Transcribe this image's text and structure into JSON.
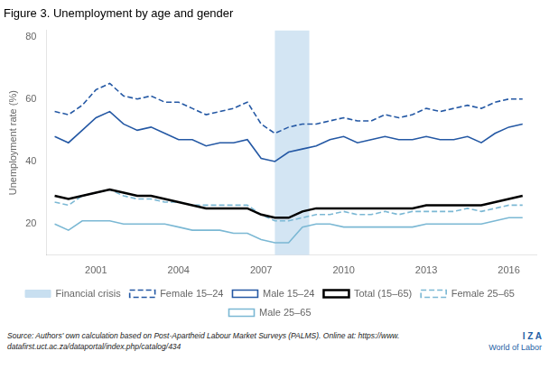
{
  "chart_data": {
    "type": "line",
    "title": "Figure 3. Unemployment by age and gender",
    "y_label": "Unemployment rate (%)",
    "x": [
      1999.5,
      2000.0,
      2000.5,
      2001.0,
      2001.5,
      2002.0,
      2002.5,
      2003.0,
      2003.5,
      2004.0,
      2004.5,
      2005.0,
      2005.5,
      2006.0,
      2006.5,
      2007.0,
      2007.5,
      2008.0,
      2008.5,
      2009.0,
      2009.5,
      2010.0,
      2010.5,
      2011.0,
      2011.5,
      2012.0,
      2012.5,
      2013.0,
      2013.5,
      2014.0,
      2014.5,
      2015.0,
      2015.5,
      2016.0,
      2016.5
    ],
    "series": [
      {
        "name": "Female 15–24",
        "color": "#2458A4",
        "line_style": "dashed",
        "values": [
          56,
          55,
          58,
          63,
          65,
          61,
          60,
          61,
          59,
          59,
          57,
          55,
          56,
          57,
          59,
          52,
          49,
          51,
          52,
          52,
          53,
          54,
          53,
          53,
          55,
          54,
          55,
          57,
          56,
          57,
          58,
          57,
          59,
          60,
          60
        ]
      },
      {
        "name": "Male 15–24",
        "color": "#2458A4",
        "line_style": "solid",
        "values": [
          48,
          46,
          50,
          54,
          56,
          52,
          50,
          51,
          49,
          47,
          47,
          45,
          46,
          46,
          47,
          41,
          40,
          43,
          44,
          45,
          47,
          48,
          46,
          47,
          48,
          47,
          47,
          48,
          47,
          47,
          48,
          46,
          49,
          51,
          52
        ]
      },
      {
        "name": "Total (15–65)",
        "color": "#000000",
        "line_style": "solid",
        "values": [
          29,
          28,
          29,
          30,
          31,
          30,
          29,
          29,
          28,
          27,
          26,
          25,
          25,
          25,
          25,
          23,
          22,
          22,
          24,
          25,
          25,
          25,
          25,
          25,
          25,
          25,
          25,
          26,
          26,
          26,
          26,
          26,
          27,
          28,
          29
        ]
      },
      {
        "name": "Female 25–65",
        "color": "#7BB8D4",
        "line_style": "dashed",
        "values": [
          27,
          26,
          29,
          30,
          31,
          29,
          28,
          28,
          27,
          27,
          26,
          26,
          26,
          26,
          26,
          23,
          21,
          21,
          22,
          23,
          23,
          24,
          23,
          23,
          24,
          23,
          24,
          24,
          24,
          24,
          25,
          24,
          25,
          26,
          26
        ]
      },
      {
        "name": "Male 25–65",
        "color": "#7BB8D4",
        "line_style": "solid",
        "values": [
          20,
          18,
          21,
          21,
          21,
          20,
          20,
          20,
          20,
          19,
          18,
          18,
          18,
          17,
          17,
          15,
          14,
          14,
          19,
          20,
          20,
          19,
          19,
          19,
          19,
          19,
          19,
          20,
          20,
          20,
          20,
          20,
          21,
          22,
          22
        ]
      }
    ],
    "shaded_regions": [
      {
        "name": "Financial crisis",
        "start": 2007.5,
        "end": 2008.75,
        "color": "#C8DFF0"
      }
    ],
    "xlim": [
      1999.2,
      2017.0
    ],
    "xticks": [
      2001,
      2004,
      2007,
      2010,
      2013,
      2016
    ],
    "ylim": [
      10,
      82
    ],
    "yticks": [
      20,
      40,
      60,
      80
    ],
    "grid": false,
    "legend": "bottom",
    "annotations": [
      "Source: Authors' own calculation based on Post-Apartheid Labour Market Surveys (PALMS). Online at: https://www.",
      "datafirst.uct.ac.za/dataportal/index.php/catalog/434",
      "I Z A",
      "World of Labor"
    ]
  }
}
